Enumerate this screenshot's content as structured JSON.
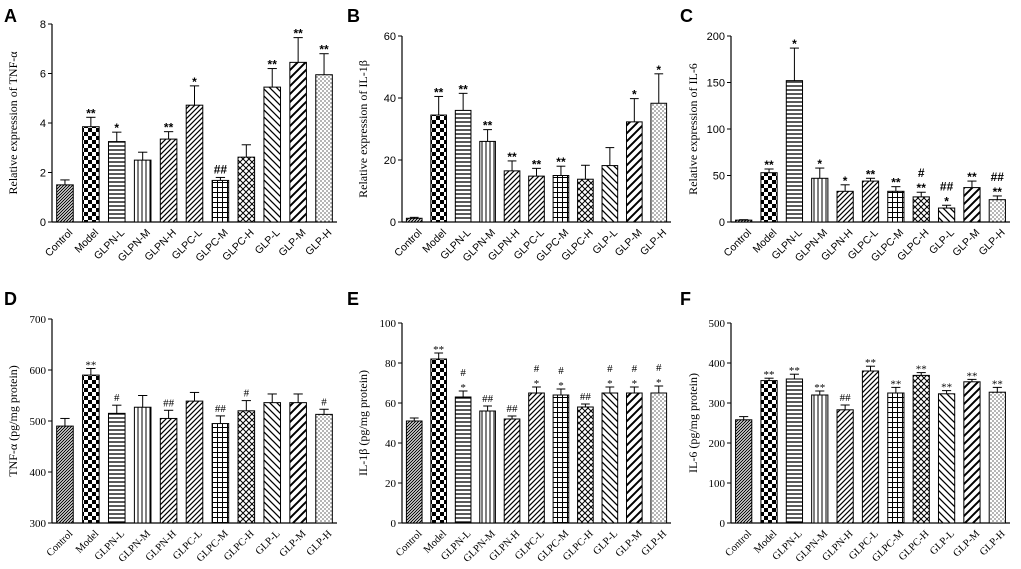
{
  "figure": {
    "categories": [
      "Control",
      "Model",
      "GLPN-L",
      "GLPN-M",
      "GLPN-H",
      "GLPC-L",
      "GLPC-M",
      "GLPC-H",
      "GLP-L",
      "GLP-M",
      "GLP-H"
    ],
    "patterns": [
      "dense",
      "check",
      "hlines",
      "vlines",
      "diag",
      "diag",
      "grid",
      "cross",
      "back",
      "diag2",
      "dots"
    ]
  },
  "chart_data": [
    {
      "panel": "A",
      "type": "bar",
      "ylabel": "Relative expression of  TNF-α",
      "ylim": [
        0,
        8
      ],
      "yticks": [
        0,
        2,
        4,
        6,
        8
      ],
      "values": [
        1.5,
        3.85,
        3.25,
        2.5,
        3.35,
        4.72,
        1.68,
        2.62,
        5.45,
        6.45,
        5.95
      ],
      "errors": [
        0.2,
        0.38,
        0.38,
        0.32,
        0.3,
        0.78,
        0.12,
        0.5,
        0.75,
        1.0,
        0.85
      ],
      "annotations": [
        [
          ""
        ],
        [
          "**"
        ],
        [
          "*"
        ],
        [
          ""
        ],
        [
          "**"
        ],
        [
          "*"
        ],
        [
          "##"
        ],
        [
          ""
        ],
        [
          "**"
        ],
        [
          "**"
        ],
        [
          "**"
        ]
      ]
    },
    {
      "panel": "B",
      "type": "bar",
      "ylabel": "Relative expression of  IL-1β",
      "ylim": [
        0,
        60
      ],
      "yticks": [
        0,
        20,
        40,
        60
      ],
      "values": [
        1.2,
        34.5,
        36.0,
        26.0,
        16.5,
        14.8,
        15.0,
        13.8,
        18.2,
        32.3,
        38.3
      ],
      "errors": [
        0.3,
        6.0,
        5.5,
        3.8,
        3.2,
        2.5,
        3.0,
        4.5,
        5.8,
        7.5,
        9.5
      ],
      "annotations": [
        [
          ""
        ],
        [
          "**"
        ],
        [
          "**"
        ],
        [
          "**"
        ],
        [
          "**"
        ],
        [
          "**"
        ],
        [
          "**"
        ],
        [
          ""
        ],
        [
          ""
        ],
        [
          "*"
        ],
        [
          "*"
        ]
      ]
    },
    {
      "panel": "C",
      "type": "bar",
      "ylabel": "Relative expression of  IL-6",
      "ylim": [
        0,
        200
      ],
      "yticks": [
        0,
        50,
        100,
        150,
        200
      ],
      "values": [
        2.0,
        53.0,
        152.0,
        47.0,
        33.0,
        44.0,
        33.0,
        27.0,
        15.0,
        37.0,
        24.0
      ],
      "errors": [
        0.5,
        4.0,
        35.0,
        11.0,
        7.0,
        3.0,
        5.0,
        5.0,
        3.0,
        7.0,
        4.0
      ],
      "annotations": [
        [
          ""
        ],
        [
          "**"
        ],
        [
          "*"
        ],
        [
          "*"
        ],
        [
          "*"
        ],
        [
          "**"
        ],
        [
          "**"
        ],
        [
          "#",
          "**"
        ],
        [
          "##",
          "*"
        ],
        [
          "**"
        ],
        [
          "##",
          "**"
        ]
      ]
    },
    {
      "panel": "D",
      "type": "bar",
      "ylabel": "TNF-α (pg/mg protein)",
      "ylim": [
        300,
        700
      ],
      "yticks": [
        300,
        400,
        500,
        600,
        700
      ],
      "values": [
        490,
        590,
        515,
        527,
        505,
        539,
        495,
        520,
        536,
        536,
        513
      ],
      "errors": [
        15,
        13,
        16,
        23,
        16,
        17,
        15,
        20,
        17,
        17,
        10
      ],
      "annotations": [
        [
          ""
        ],
        [
          "**"
        ],
        [
          "#"
        ],
        [
          ""
        ],
        [
          "##"
        ],
        [
          ""
        ],
        [
          "##"
        ],
        [
          "#"
        ],
        [
          ""
        ],
        [
          ""
        ],
        [
          "#"
        ]
      ]
    },
    {
      "panel": "E",
      "type": "bar",
      "ylabel": "IL-1β   (pg/mg protein)",
      "ylim": [
        0,
        100
      ],
      "yticks": [
        0,
        20,
        40,
        60,
        80,
        100
      ],
      "values": [
        51,
        82,
        63,
        56,
        52,
        65,
        64,
        58,
        65,
        65,
        65
      ],
      "errors": [
        1.5,
        3.0,
        3.0,
        2.5,
        1.5,
        3.0,
        3.0,
        1.5,
        3.0,
        3.0,
        3.5
      ],
      "annotations": [
        [
          ""
        ],
        [
          "**"
        ],
        [
          "#",
          "*"
        ],
        [
          "##"
        ],
        [
          "##"
        ],
        [
          "#",
          "*"
        ],
        [
          "#",
          "*"
        ],
        [
          "##"
        ],
        [
          "#",
          "*"
        ],
        [
          "#",
          "*"
        ],
        [
          "#",
          "*"
        ]
      ]
    },
    {
      "panel": "F",
      "type": "bar",
      "ylabel": "IL-6 (pg/mg protein)",
      "ylim": [
        0,
        500
      ],
      "yticks": [
        0,
        100,
        200,
        300,
        400,
        500
      ],
      "values": [
        258,
        356,
        360,
        320,
        283,
        380,
        325,
        369,
        323,
        353,
        327
      ],
      "errors": [
        8,
        6,
        12,
        10,
        12,
        12,
        14,
        7,
        8,
        6,
        12
      ],
      "annotations": [
        [
          ""
        ],
        [
          "**"
        ],
        [
          "**"
        ],
        [
          "**"
        ],
        [
          "##"
        ],
        [
          "**"
        ],
        [
          "**"
        ],
        [
          "**"
        ],
        [
          "**"
        ],
        [
          "**"
        ],
        [
          "**"
        ]
      ]
    }
  ]
}
